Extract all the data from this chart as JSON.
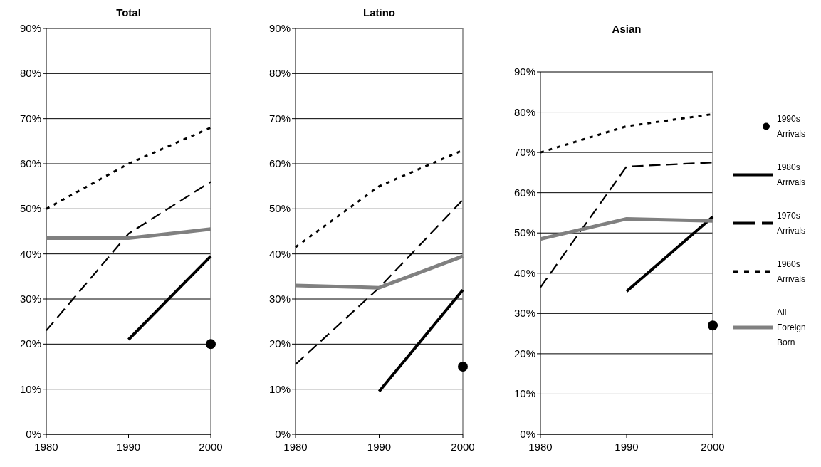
{
  "chart_data": [
    {
      "type": "line",
      "title": "Total",
      "x": [
        1980,
        1990,
        2000
      ],
      "xlim": [
        1980,
        2000
      ],
      "xticks": [
        1980,
        1990,
        2000
      ],
      "ylim": [
        0,
        90
      ],
      "yticks": [
        {
          "value": 0,
          "label": "0%"
        },
        {
          "value": 10,
          "label": "10%"
        },
        {
          "value": 20,
          "label": "20%"
        },
        {
          "value": 30,
          "label": "30%"
        },
        {
          "value": 40,
          "label": "40%"
        },
        {
          "value": 50,
          "label": "50%"
        },
        {
          "value": 60,
          "label": "60%"
        },
        {
          "value": 70,
          "label": "70%"
        },
        {
          "value": 80,
          "label": "80%"
        },
        {
          "value": 90,
          "label": "90%"
        }
      ],
      "grid": "y",
      "legend": false,
      "series": [
        {
          "type": "scatter",
          "marker": "circle",
          "color": "#000000",
          "values": [
            null,
            null,
            20
          ]
        },
        {
          "line_style": "solid",
          "color": "#000000",
          "values": [
            null,
            21,
            39.5
          ]
        },
        {
          "line_style": "dashed",
          "color": "#000000",
          "values": [
            23,
            44.5,
            56
          ]
        },
        {
          "line_style": "dotted",
          "color": "#000000",
          "values": [
            50,
            60,
            68
          ]
        },
        {
          "line_style": "solid",
          "color": "#808080",
          "values": [
            43.5,
            43.5,
            45.5
          ]
        }
      ]
    },
    {
      "type": "line",
      "title": "Latino",
      "x": [
        1980,
        1990,
        2000
      ],
      "xlim": [
        1980,
        2000
      ],
      "xticks": [
        1980,
        1990,
        2000
      ],
      "ylim": [
        0,
        90
      ],
      "yticks": [
        {
          "value": 0,
          "label": "0%"
        },
        {
          "value": 10,
          "label": "10%"
        },
        {
          "value": 20,
          "label": "20%"
        },
        {
          "value": 30,
          "label": "30%"
        },
        {
          "value": 40,
          "label": "40%"
        },
        {
          "value": 50,
          "label": "50%"
        },
        {
          "value": 60,
          "label": "60%"
        },
        {
          "value": 70,
          "label": "70%"
        },
        {
          "value": 80,
          "label": "80%"
        },
        {
          "value": 90,
          "label": "90%"
        }
      ],
      "grid": "y",
      "legend": false,
      "series": [
        {
          "type": "scatter",
          "marker": "circle",
          "color": "#000000",
          "values": [
            null,
            null,
            15
          ]
        },
        {
          "line_style": "solid",
          "color": "#000000",
          "values": [
            null,
            9.5,
            32
          ]
        },
        {
          "line_style": "dashed",
          "color": "#000000",
          "values": [
            15.5,
            32.5,
            52
          ]
        },
        {
          "line_style": "dotted",
          "color": "#000000",
          "values": [
            41.5,
            55,
            63
          ]
        },
        {
          "line_style": "solid",
          "color": "#808080",
          "values": [
            33,
            32.5,
            39.5
          ]
        }
      ]
    },
    {
      "type": "line",
      "title": "Asian",
      "x": [
        1980,
        1990,
        2000
      ],
      "xlim": [
        1980,
        2000
      ],
      "xticks": [
        1980,
        1990,
        2000
      ],
      "ylim": [
        0,
        90
      ],
      "yticks": [
        {
          "value": 0,
          "label": "0%"
        },
        {
          "value": 10,
          "label": "10%"
        },
        {
          "value": 20,
          "label": "20%"
        },
        {
          "value": 30,
          "label": "30%"
        },
        {
          "value": 40,
          "label": "40%"
        },
        {
          "value": 50,
          "label": "50%"
        },
        {
          "value": 60,
          "label": "60%"
        },
        {
          "value": 70,
          "label": "70%"
        },
        {
          "value": 80,
          "label": "80%"
        },
        {
          "value": 90,
          "label": "90%"
        }
      ],
      "grid": "y",
      "legend": "right",
      "series": [
        {
          "name": "1990s Arrivals",
          "type": "scatter",
          "marker": "circle",
          "color": "#000000",
          "values": [
            null,
            null,
            27
          ]
        },
        {
          "name": "1980s Arrivals",
          "line_style": "solid",
          "color": "#000000",
          "values": [
            null,
            35.5,
            54
          ]
        },
        {
          "name": "1970s Arrivals",
          "line_style": "dashed",
          "color": "#000000",
          "values": [
            36.5,
            66.5,
            67.5
          ]
        },
        {
          "name": "1960s Arrivals",
          "line_style": "dotted",
          "color": "#000000",
          "values": [
            70,
            76.5,
            79.5
          ]
        },
        {
          "name": "All Foreign Born",
          "line_style": "solid",
          "color": "#808080",
          "values": [
            48.5,
            53.5,
            53
          ]
        }
      ]
    }
  ]
}
